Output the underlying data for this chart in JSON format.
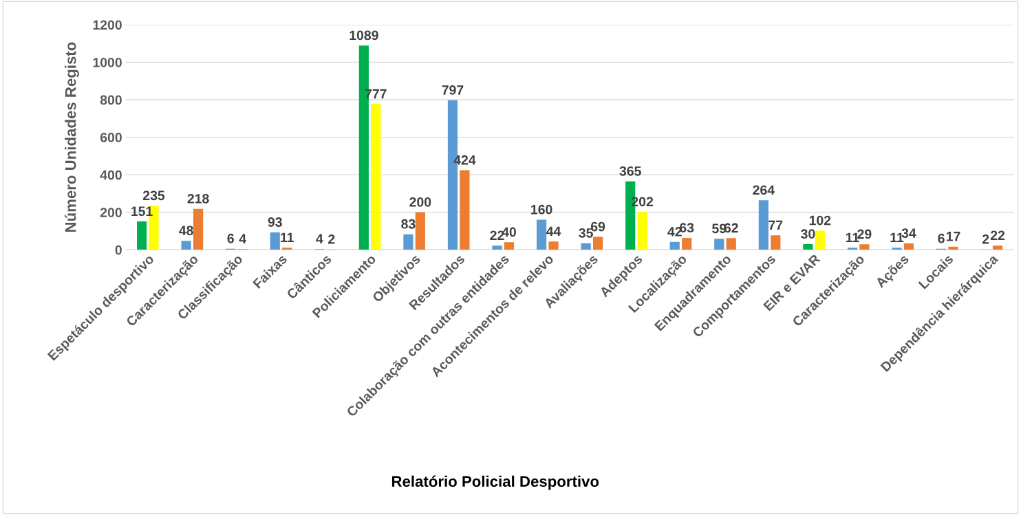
{
  "chart_data": {
    "type": "bar",
    "xlabel": "Relatório Policial Desportivo",
    "ylabel": "Número Unidades Registo",
    "categories": [
      "Espetáculo desportivo",
      "Caracterização",
      "Classificação",
      "Faixas",
      "Cânticos",
      "Policiamento",
      "Objetivos",
      "Resultados",
      "Colaboração com outras entidades",
      "Acontecimentos de relevo",
      "Avaliações",
      "Adeptos",
      "Localização",
      "Enquadramento",
      "Comportamentos",
      "EIR e EVAR",
      "Caracterização",
      "Ações",
      "Locais",
      "Dependência hierárquica"
    ],
    "series": [
      {
        "values": [
          151,
          48,
          6,
          93,
          4,
          1089,
          83,
          797,
          22,
          160,
          35,
          365,
          42,
          59,
          264,
          30,
          11,
          11,
          6,
          2
        ],
        "colors": [
          "#00b050",
          "#5b9bd5",
          "#5b9bd5",
          "#5b9bd5",
          "#5b9bd5",
          "#00b050",
          "#5b9bd5",
          "#5b9bd5",
          "#5b9bd5",
          "#5b9bd5",
          "#5b9bd5",
          "#00b050",
          "#5b9bd5",
          "#5b9bd5",
          "#5b9bd5",
          "#00b050",
          "#5b9bd5",
          "#5b9bd5",
          "#5b9bd5",
          "#5b9bd5"
        ]
      },
      {
        "values": [
          235,
          218,
          4,
          11,
          2,
          777,
          200,
          424,
          40,
          44,
          69,
          202,
          63,
          62,
          77,
          102,
          29,
          34,
          17,
          22
        ],
        "colors": [
          "#ffff00",
          "#ed7d31",
          "#ed7d31",
          "#ed7d31",
          "#ed7d31",
          "#ffff00",
          "#ed7d31",
          "#ed7d31",
          "#ed7d31",
          "#ed7d31",
          "#ed7d31",
          "#ffff00",
          "#ed7d31",
          "#ed7d31",
          "#ed7d31",
          "#ffff00",
          "#ed7d31",
          "#ed7d31",
          "#ed7d31",
          "#ed7d31"
        ]
      }
    ],
    "ylim": [
      0,
      1200
    ],
    "yticks": [
      0,
      200,
      400,
      600,
      800,
      1000,
      1200
    ],
    "grid": "y",
    "data_labels": true,
    "legend": false
  }
}
